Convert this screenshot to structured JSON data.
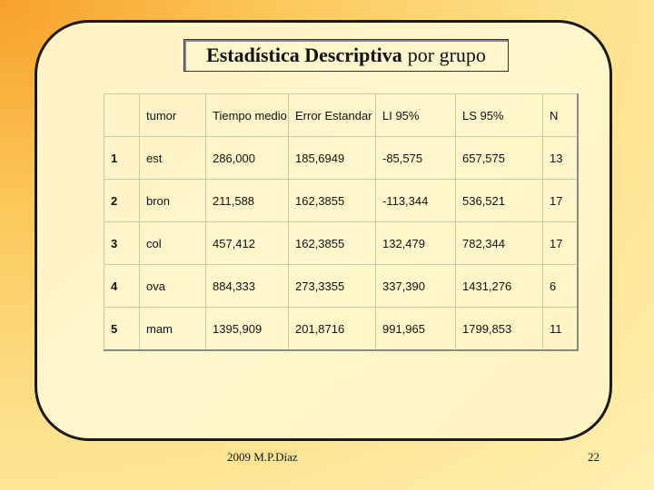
{
  "slide": {
    "title_bold": "Estadística Descriptiva",
    "title_rest": "por grupo",
    "footer": "2009   M.P.Díaz",
    "page_number": "22"
  },
  "table": {
    "headers": [
      "",
      "tumor",
      "Tiempo medio",
      "Error Estandar",
      "LI 95%",
      "LS 95%",
      "N"
    ],
    "rows": [
      [
        "1",
        "est",
        "286,000",
        "185,6949",
        "-85,575",
        "657,575",
        "13"
      ],
      [
        "2",
        "bron",
        "211,588",
        "162,3855",
        "-113,344",
        "536,521",
        "17"
      ],
      [
        "3",
        "col",
        "457,412",
        "162,3855",
        "132,479",
        "782,344",
        "17"
      ],
      [
        "4",
        "ova",
        "884,333",
        "273,3355",
        "337,390",
        "1431,276",
        "6"
      ],
      [
        "5",
        "mam",
        "1395,909",
        "201,8716",
        "991,965",
        "1799,853",
        "11"
      ]
    ]
  }
}
